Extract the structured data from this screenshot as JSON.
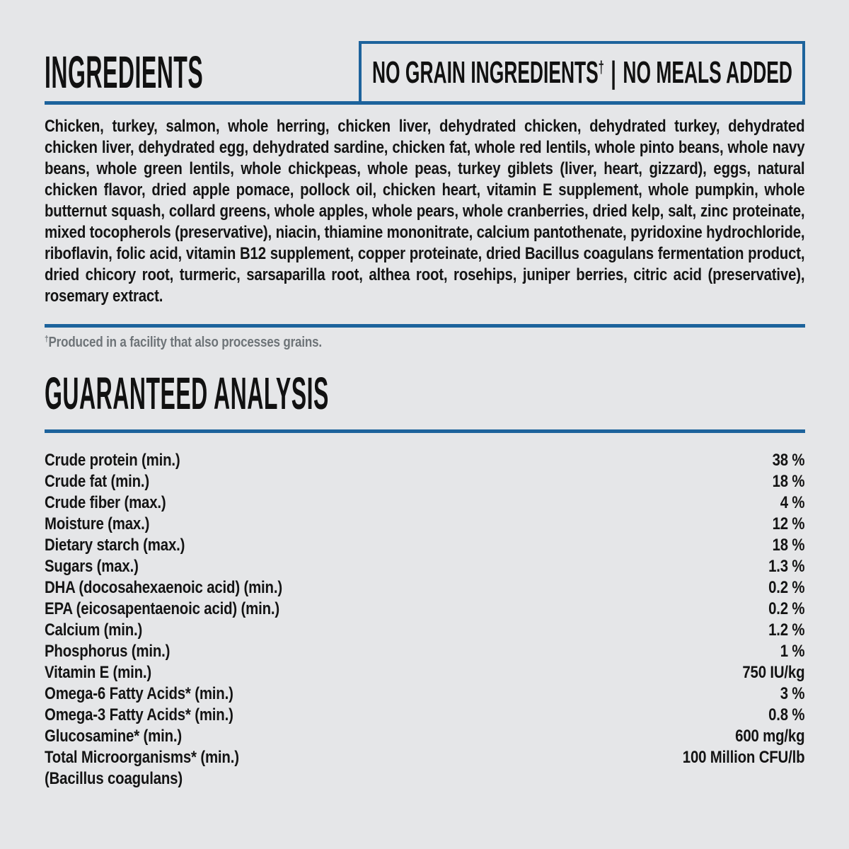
{
  "colors": {
    "background": "#e5e6e8",
    "accent_blue": "#1d639c",
    "text": "#141414",
    "muted_gray": "#6e7478"
  },
  "ingredients": {
    "title": "INGREDIENTS",
    "badge": {
      "part1": "NO GRAIN INGREDIENTS",
      "dagger": "†",
      "separator": "|",
      "part2": "NO MEALS ADDED"
    },
    "body": "Chicken, turkey, salmon, whole herring, chicken liver, dehydrated chicken, dehydrated turkey, dehydrated chicken liver, dehydrated egg, dehydrated sardine, chicken fat, whole red lentils, whole pinto beans, whole navy beans, whole green lentils, whole chickpeas, whole peas, turkey giblets (liver, heart, gizzard), eggs, natural chicken flavor, dried apple pomace, pollock oil, chicken heart, vitamin E supplement, whole pumpkin, whole butternut squash, collard greens, whole apples, whole pears, whole cranberries, dried kelp, salt, zinc proteinate, mixed tocopherols (preservative), niacin, thiamine mononitrate, calcium pantothenate, pyridoxine hydrochloride, riboflavin, folic acid, vitamin B12 supplement, copper proteinate, dried Bacillus coagulans fermentation product, dried chicory root, turmeric, sarsaparilla root, althea root, rosehips, juniper berries, citric acid (preservative), rosemary extract.",
    "footnote": {
      "dagger": "†",
      "text": "Produced in a facility that also processes grains."
    }
  },
  "analysis": {
    "title": "GUARANTEED ANALYSIS",
    "rows": [
      {
        "label": "Crude protein (min.)",
        "value": "38 %"
      },
      {
        "label": "Crude fat (min.)",
        "value": "18 %"
      },
      {
        "label": "Crude fiber (max.)",
        "value": "4 %"
      },
      {
        "label": "Moisture (max.)",
        "value": "12 %"
      },
      {
        "label": "Dietary starch (max.)",
        "value": "18 %"
      },
      {
        "label": "Sugars (max.)",
        "value": "1.3 %"
      },
      {
        "label": "DHA (docosahexaenoic acid) (min.)",
        "value": "0.2 %"
      },
      {
        "label": "EPA (eicosapentaenoic acid) (min.)",
        "value": "0.2 %"
      },
      {
        "label": "Calcium (min.)",
        "value": "1.2 %"
      },
      {
        "label": "Phosphorus (min.)",
        "value": "1 %"
      },
      {
        "label": "Vitamin E (min.)",
        "value": "750 IU/kg"
      },
      {
        "label": "Omega-6 Fatty Acids* (min.)",
        "value": "3 %"
      },
      {
        "label": "Omega-3 Fatty Acids* (min.)",
        "value": "0.8 %"
      },
      {
        "label": "Glucosamine* (min.)",
        "value": "600 mg/kg"
      },
      {
        "label": "Total Microorganisms* (min.)",
        "value": "100 Million CFU/lb"
      },
      {
        "label": "(Bacillus coagulans)",
        "value": ""
      }
    ]
  }
}
